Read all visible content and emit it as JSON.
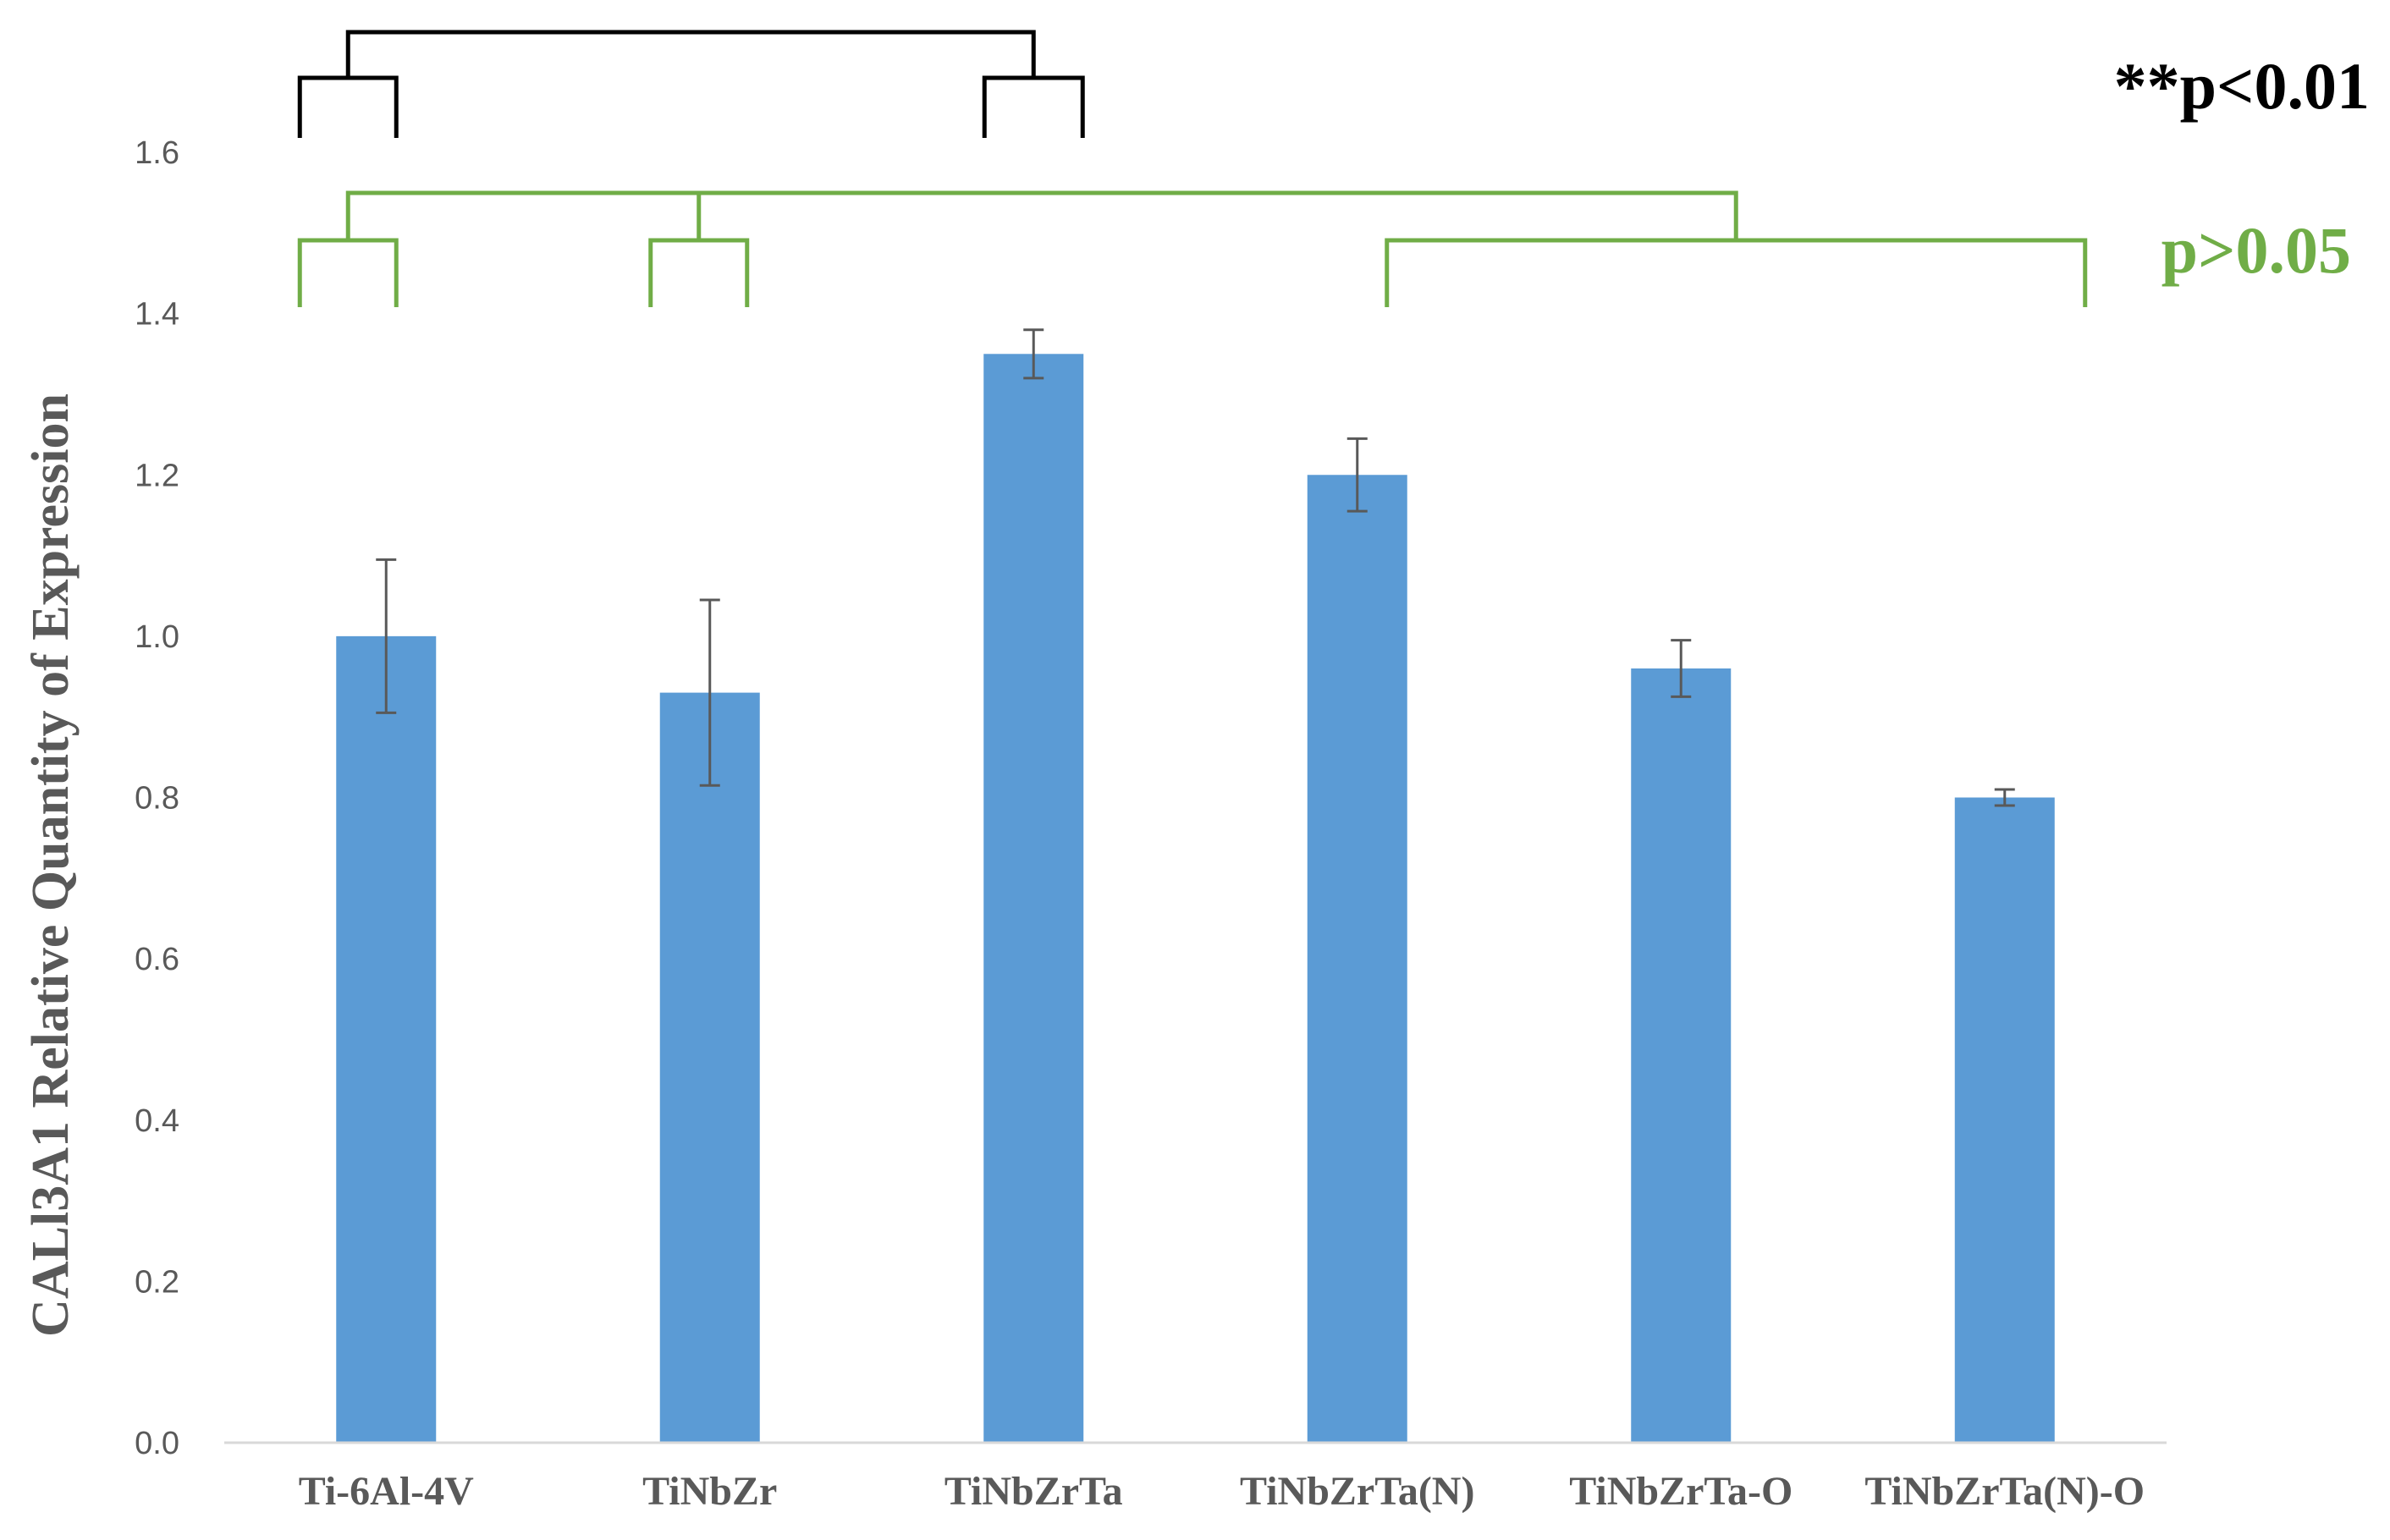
{
  "chart_data": {
    "type": "bar",
    "title": "",
    "xlabel": "",
    "ylabel": "CALl3A1 Relative Quantity of Expression",
    "ylim": [
      0,
      1.6
    ],
    "yticks": [
      "0.0",
      "0.2",
      "0.4",
      "0.6",
      "0.8",
      "1.0",
      "1.2",
      "1.4",
      "1.6"
    ],
    "grid": false,
    "categories": [
      "Ti-6Al-4V",
      "TiNbZr",
      "TiNbZrTa",
      "TiNbZrTa(N)",
      "TiNbZrTa-O",
      "TiNbZrTa(N)-O"
    ],
    "values": [
      1.0,
      0.93,
      1.35,
      1.2,
      0.96,
      0.8
    ],
    "error": [
      0.095,
      0.115,
      0.03,
      0.045,
      0.035,
      0.01
    ],
    "bar_color": "#5b9bd5",
    "significance": [
      {
        "label": "**p<0.01",
        "color": "#000000",
        "groups": [
          [
            "Ti-6Al-4V",
            "TiNbZr"
          ],
          [
            "TiNbZrTa",
            "TiNbZrTa(N)"
          ]
        ]
      },
      {
        "label": "p>0.05",
        "color": "#70ad47",
        "groups": [
          [
            "Ti-6Al-4V",
            "TiNbZr"
          ],
          [
            "TiNbZr",
            "TiNbZrTa"
          ],
          [
            "TiNbZrTa(N)",
            "TiNbZrTa(N)-O"
          ]
        ]
      }
    ]
  }
}
